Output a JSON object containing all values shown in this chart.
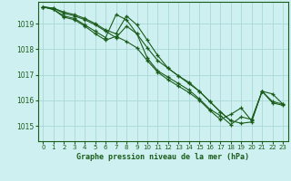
{
  "title": "Graphe pression niveau de la mer (hPa)",
  "bg_color": "#cff0f0",
  "grid_color": "#aad8d8",
  "line_color": "#1a5c1a",
  "marker_color": "#1a5c1a",
  "xlim": [
    -0.5,
    23.5
  ],
  "ylim": [
    1014.4,
    1019.85
  ],
  "yticks": [
    1015,
    1016,
    1017,
    1018,
    1019
  ],
  "xticks": [
    0,
    1,
    2,
    3,
    4,
    5,
    6,
    7,
    8,
    9,
    10,
    11,
    12,
    13,
    14,
    15,
    16,
    17,
    18,
    19,
    20,
    21,
    22,
    23
  ],
  "series": [
    [
      1019.65,
      1019.6,
      1019.45,
      1019.35,
      1019.2,
      1019.0,
      1018.75,
      1018.6,
      1019.3,
      1018.95,
      1018.35,
      1017.75,
      1017.25,
      1016.95,
      1016.65,
      1016.35,
      1015.95,
      1015.55,
      1015.2,
      1015.1,
      1015.15,
      1016.35,
      1016.25,
      1015.85
    ],
    [
      1019.65,
      1019.6,
      1019.4,
      1019.3,
      1019.15,
      1018.95,
      1018.7,
      1018.45,
      1018.9,
      1018.6,
      1017.65,
      1017.15,
      1016.9,
      1016.65,
      1016.4,
      1016.05,
      1015.65,
      1015.4,
      1015.05,
      1015.35,
      1015.25,
      1016.35,
      1015.9,
      1015.8
    ],
    [
      1019.65,
      1019.55,
      1019.3,
      1019.2,
      1018.95,
      1018.7,
      1018.45,
      1019.35,
      1019.15,
      1018.6,
      1018.05,
      1017.55,
      1017.25,
      1016.95,
      1016.7,
      1016.35,
      1015.95,
      1015.55,
      1015.2,
      null,
      null,
      null,
      null,
      null
    ],
    [
      1019.65,
      1019.55,
      1019.25,
      1019.15,
      1018.9,
      1018.6,
      1018.35,
      1018.5,
      1018.3,
      1018.05,
      1017.55,
      1017.1,
      1016.8,
      1016.55,
      1016.3,
      1016.0,
      1015.6,
      1015.25,
      1015.45,
      1015.7,
      1015.2,
      1016.35,
      1015.95,
      1015.85
    ]
  ]
}
